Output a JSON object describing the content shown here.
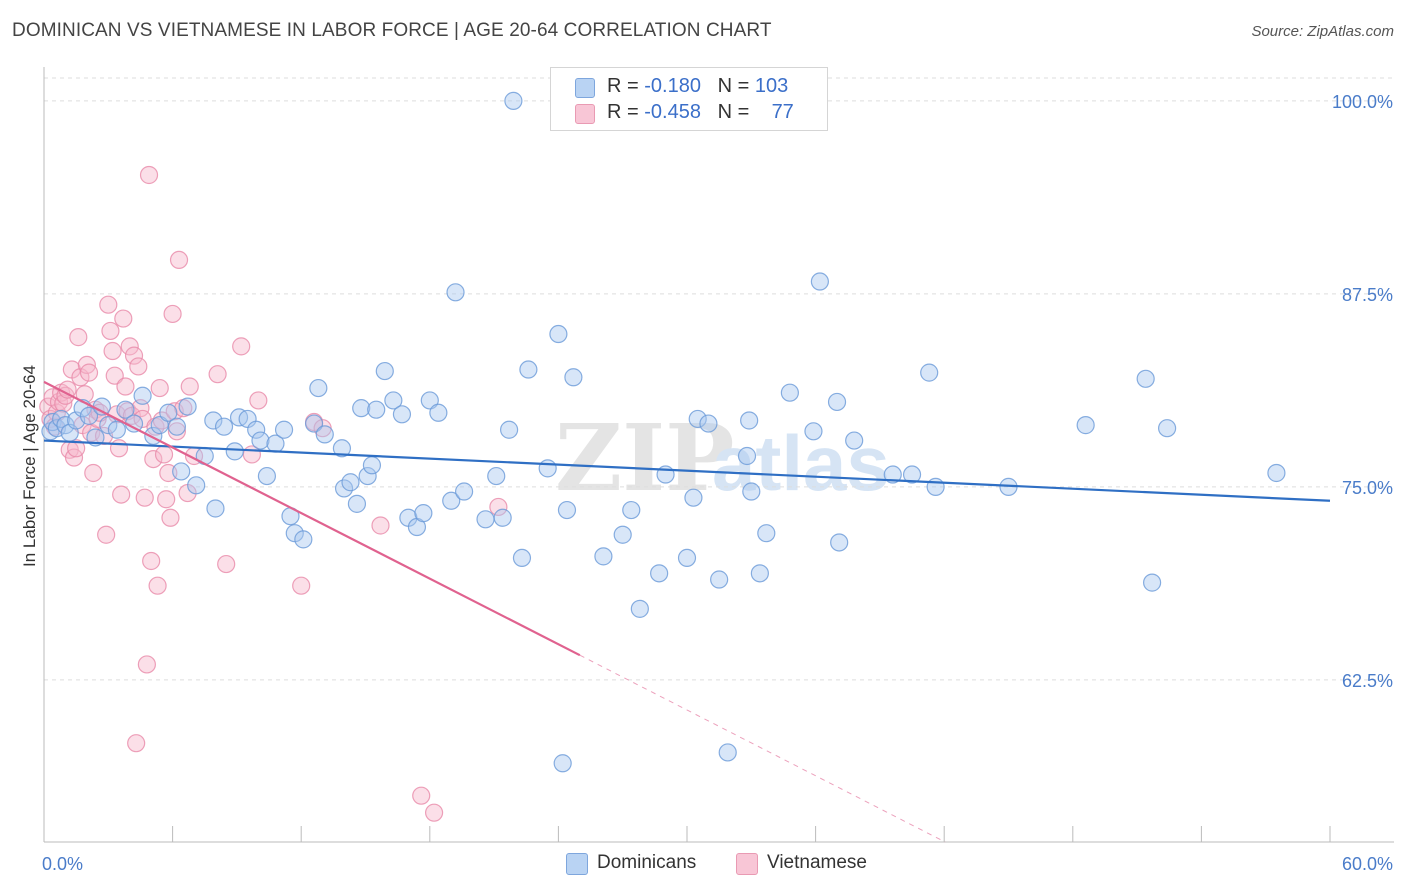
{
  "header": {
    "title": "DOMINICAN VS VIETNAMESE IN LABOR FORCE | AGE 20-64 CORRELATION CHART",
    "source": "Source: ZipAtlas.com"
  },
  "legend": {
    "rows": [
      {
        "r_label": "R = ",
        "r_value": "-0.180",
        "n_label": "N = ",
        "n_value": "103"
      },
      {
        "r_label": "R = ",
        "r_value": "-0.458",
        "n_label": "N = ",
        "n_value": "77"
      }
    ]
  },
  "bottom_legend": {
    "items": [
      {
        "label": "Dominicans"
      },
      {
        "label": "Vietnamese"
      }
    ]
  },
  "watermark": {
    "zip": "ZIP",
    "atlas": "atlas"
  },
  "colors": {
    "blue_fill": "#a8c8f0",
    "blue_stroke": "#6a9ad8",
    "blue_line": "#2f6fc4",
    "pink_fill": "#f7b7cb",
    "pink_stroke": "#e98aa9",
    "pink_line": "#e0628f",
    "grid": "#dddddd",
    "tick_label": "#4a7cc9"
  },
  "chart_data": {
    "type": "scatter",
    "title": "DOMINICAN VS VIETNAMESE IN LABOR FORCE | AGE 20-64 CORRELATION CHART",
    "xlabel": "",
    "ylabel": "In Labor Force | Age 20-64",
    "xlim": [
      0,
      60
    ],
    "ylim": [
      52,
      102
    ],
    "x_tick_labels": [
      "0.0%",
      "60.0%"
    ],
    "y_ticks": [
      62.5,
      75.0,
      87.5,
      100.0
    ],
    "y_tick_labels": [
      "62.5%",
      "75.0%",
      "87.5%",
      "100.0%"
    ],
    "grid": "horizontal dashed",
    "legend_position": "top-center",
    "series": [
      {
        "name": "Dominicans",
        "r": -0.18,
        "n": 103,
        "trend": {
          "x": [
            0,
            60
          ],
          "y": [
            78.0,
            74.1
          ]
        },
        "points": [
          [
            0.3,
            78.6
          ],
          [
            0.4,
            79.2
          ],
          [
            0.6,
            78.8
          ],
          [
            0.8,
            79.4
          ],
          [
            1.0,
            79.0
          ],
          [
            1.2,
            78.5
          ],
          [
            1.5,
            79.3
          ],
          [
            1.8,
            80.1
          ],
          [
            2.1,
            79.6
          ],
          [
            2.4,
            78.2
          ],
          [
            2.7,
            80.2
          ],
          [
            3.0,
            79.0
          ],
          [
            3.4,
            78.7
          ],
          [
            3.8,
            80.0
          ],
          [
            4.2,
            79.1
          ],
          [
            4.6,
            80.9
          ],
          [
            5.1,
            78.3
          ],
          [
            5.4,
            79.0
          ],
          [
            5.8,
            79.8
          ],
          [
            6.2,
            78.9
          ],
          [
            6.4,
            76.0
          ],
          [
            6.7,
            80.2
          ],
          [
            7.1,
            75.1
          ],
          [
            7.5,
            77.0
          ],
          [
            7.9,
            79.3
          ],
          [
            8.0,
            73.6
          ],
          [
            8.4,
            78.9
          ],
          [
            8.9,
            77.3
          ],
          [
            9.1,
            79.5
          ],
          [
            9.5,
            79.4
          ],
          [
            9.9,
            78.7
          ],
          [
            10.1,
            78.0
          ],
          [
            10.4,
            75.7
          ],
          [
            10.8,
            77.8
          ],
          [
            11.2,
            78.7
          ],
          [
            11.5,
            73.1
          ],
          [
            11.7,
            72.0
          ],
          [
            12.1,
            71.6
          ],
          [
            12.6,
            79.1
          ],
          [
            12.8,
            81.4
          ],
          [
            13.1,
            78.4
          ],
          [
            13.9,
            77.5
          ],
          [
            14.0,
            74.9
          ],
          [
            14.3,
            75.3
          ],
          [
            14.6,
            73.9
          ],
          [
            14.8,
            80.1
          ],
          [
            15.1,
            75.7
          ],
          [
            15.3,
            76.4
          ],
          [
            15.5,
            80.0
          ],
          [
            15.9,
            82.5
          ],
          [
            16.3,
            80.6
          ],
          [
            16.7,
            79.7
          ],
          [
            17.0,
            73.0
          ],
          [
            17.4,
            72.4
          ],
          [
            17.7,
            73.3
          ],
          [
            18.0,
            80.6
          ],
          [
            18.4,
            79.8
          ],
          [
            19.0,
            74.1
          ],
          [
            19.2,
            87.6
          ],
          [
            19.6,
            74.7
          ],
          [
            20.6,
            72.9
          ],
          [
            21.1,
            75.7
          ],
          [
            21.4,
            73.0
          ],
          [
            21.7,
            78.7
          ],
          [
            21.9,
            100.0
          ],
          [
            22.3,
            70.4
          ],
          [
            22.6,
            82.6
          ],
          [
            23.5,
            76.2
          ],
          [
            24.0,
            84.9
          ],
          [
            24.2,
            57.1
          ],
          [
            24.4,
            73.5
          ],
          [
            24.7,
            82.1
          ],
          [
            26.1,
            70.5
          ],
          [
            27.0,
            71.9
          ],
          [
            27.4,
            73.5
          ],
          [
            27.8,
            67.1
          ],
          [
            28.7,
            69.4
          ],
          [
            29.0,
            75.8
          ],
          [
            30.0,
            70.4
          ],
          [
            30.3,
            74.3
          ],
          [
            30.5,
            79.4
          ],
          [
            31.0,
            79.1
          ],
          [
            31.5,
            69.0
          ],
          [
            31.9,
            57.8
          ],
          [
            32.8,
            77.0
          ],
          [
            32.9,
            79.3
          ],
          [
            33.0,
            74.7
          ],
          [
            33.4,
            69.4
          ],
          [
            33.7,
            72.0
          ],
          [
            34.8,
            81.1
          ],
          [
            35.9,
            78.6
          ],
          [
            36.2,
            88.3
          ],
          [
            37.0,
            80.5
          ],
          [
            37.1,
            71.4
          ],
          [
            37.8,
            78.0
          ],
          [
            39.6,
            75.8
          ],
          [
            40.5,
            75.8
          ],
          [
            41.3,
            82.4
          ],
          [
            41.6,
            75.0
          ],
          [
            45.0,
            75.0
          ],
          [
            48.6,
            79.0
          ],
          [
            51.4,
            82.0
          ],
          [
            51.7,
            68.8
          ],
          [
            52.4,
            78.8
          ],
          [
            57.5,
            75.9
          ]
        ]
      },
      {
        "name": "Vietnamese",
        "r": -0.458,
        "n": 77,
        "trend": {
          "x": [
            0,
            25
          ],
          "y": [
            81.8,
            64.1
          ]
        },
        "trend_extension": {
          "x": [
            25,
            45
          ],
          "y": [
            64.1,
            49.9
          ]
        },
        "points": [
          [
            0.2,
            80.2
          ],
          [
            0.3,
            79.4
          ],
          [
            0.4,
            80.8
          ],
          [
            0.5,
            78.9
          ],
          [
            0.6,
            79.8
          ],
          [
            0.7,
            80.5
          ],
          [
            0.8,
            81.1
          ],
          [
            0.9,
            80.4
          ],
          [
            1.0,
            80.9
          ],
          [
            1.1,
            81.3
          ],
          [
            1.2,
            77.4
          ],
          [
            1.3,
            82.6
          ],
          [
            1.4,
            76.9
          ],
          [
            1.5,
            77.5
          ],
          [
            1.6,
            84.7
          ],
          [
            1.7,
            82.1
          ],
          [
            1.8,
            79.0
          ],
          [
            1.9,
            81.0
          ],
          [
            2.0,
            82.9
          ],
          [
            2.1,
            82.4
          ],
          [
            2.2,
            78.5
          ],
          [
            2.3,
            75.9
          ],
          [
            2.4,
            80.0
          ],
          [
            2.5,
            79.4
          ],
          [
            2.6,
            79.8
          ],
          [
            2.8,
            78.3
          ],
          [
            2.9,
            71.9
          ],
          [
            3.0,
            86.8
          ],
          [
            3.1,
            85.1
          ],
          [
            3.2,
            83.8
          ],
          [
            3.3,
            82.2
          ],
          [
            3.4,
            79.7
          ],
          [
            3.5,
            77.5
          ],
          [
            3.6,
            74.5
          ],
          [
            3.7,
            85.9
          ],
          [
            3.8,
            81.5
          ],
          [
            3.9,
            79.9
          ],
          [
            4.0,
            84.1
          ],
          [
            4.1,
            79.6
          ],
          [
            4.2,
            83.5
          ],
          [
            4.3,
            58.4
          ],
          [
            4.4,
            82.8
          ],
          [
            4.5,
            80.1
          ],
          [
            4.6,
            79.4
          ],
          [
            4.7,
            74.3
          ],
          [
            4.8,
            63.5
          ],
          [
            4.9,
            95.2
          ],
          [
            5.0,
            70.2
          ],
          [
            5.1,
            76.8
          ],
          [
            5.2,
            78.9
          ],
          [
            5.3,
            68.6
          ],
          [
            5.4,
            81.4
          ],
          [
            5.5,
            79.3
          ],
          [
            5.6,
            77.1
          ],
          [
            5.7,
            74.2
          ],
          [
            5.8,
            75.9
          ],
          [
            5.9,
            73.0
          ],
          [
            6.0,
            86.2
          ],
          [
            6.1,
            79.9
          ],
          [
            6.2,
            78.6
          ],
          [
            6.3,
            89.7
          ],
          [
            6.5,
            80.1
          ],
          [
            6.7,
            74.6
          ],
          [
            6.8,
            81.5
          ],
          [
            7.0,
            77.0
          ],
          [
            8.1,
            82.3
          ],
          [
            8.5,
            70.0
          ],
          [
            9.2,
            84.1
          ],
          [
            9.7,
            77.1
          ],
          [
            10.0,
            80.6
          ],
          [
            12.0,
            68.6
          ],
          [
            12.6,
            79.2
          ],
          [
            13.0,
            78.8
          ],
          [
            15.7,
            72.5
          ],
          [
            17.6,
            55.0
          ],
          [
            18.2,
            53.9
          ],
          [
            21.2,
            73.7
          ]
        ]
      }
    ]
  }
}
